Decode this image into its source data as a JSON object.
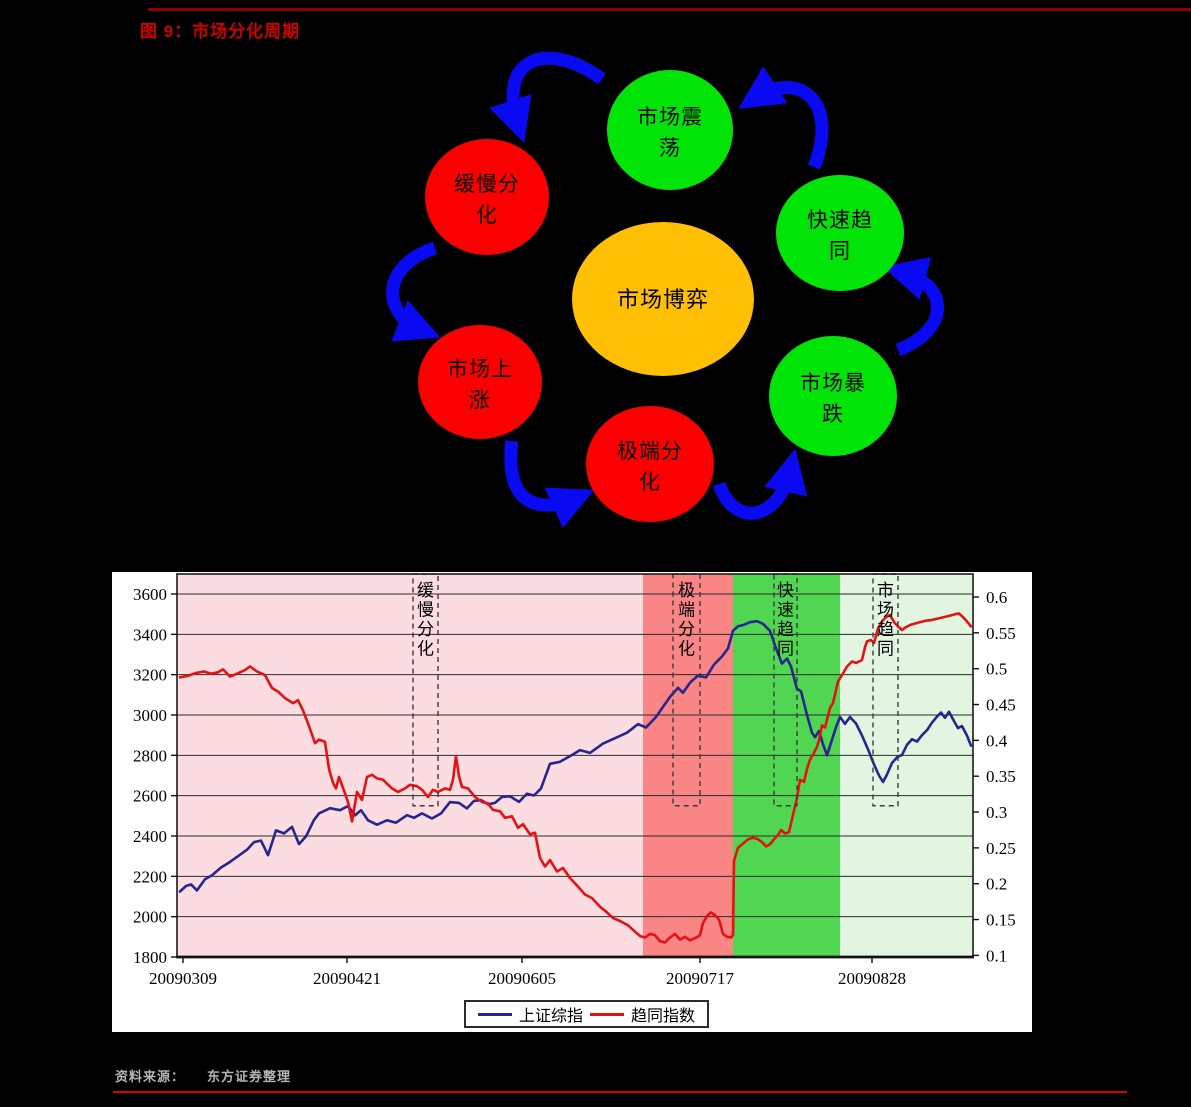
{
  "page": {
    "title": "图 9：市场分化周期",
    "source_label": "资料来源：",
    "source_value": "东方证券整理",
    "colors": {
      "background": "#000000",
      "title_red": "#CE0000",
      "top_rule": "#8E0000",
      "bottom_rule": "#D80000",
      "source_text": "#B5B5B5"
    }
  },
  "diagram": {
    "arrow_color": "#0A0AF2",
    "center": {
      "label": "市场博弈",
      "color": "#FFC004"
    },
    "nodes": {
      "oscillation": {
        "line1": "市场震",
        "line2": "荡",
        "color": "#00E408"
      },
      "slow_divergence": {
        "line1": "缓慢分",
        "line2": "化",
        "color": "#FA0000"
      },
      "fast_convergence": {
        "line1": "快速趋",
        "line2": "同",
        "color": "#00E408"
      },
      "market_rise": {
        "line1": "市场上",
        "line2": "涨",
        "color": "#FA0000"
      },
      "market_crash": {
        "line1": "市场暴",
        "line2": "跌",
        "color": "#00E408"
      },
      "extreme_divergence": {
        "line1": "极端分",
        "line2": "化",
        "color": "#FA0000"
      }
    },
    "cycle_order": [
      "市场震荡",
      "缓慢分化",
      "市场上涨",
      "极端分化",
      "市场暴跌",
      "快速趋同"
    ]
  },
  "chart_data": {
    "type": "line",
    "title": "",
    "xlabel": "",
    "ylabel_left": "",
    "ylabel_right": "",
    "grid": true,
    "legend_position": "bottom",
    "left_axis": {
      "min": 1800,
      "max": 3600,
      "ticks": [
        1800,
        2000,
        2200,
        2400,
        2600,
        2800,
        3000,
        3200,
        3400,
        3600
      ]
    },
    "right_axis": {
      "min": 0.1,
      "max": 0.6,
      "ticks": [
        0.1,
        0.15,
        0.2,
        0.25,
        0.3,
        0.35,
        0.4,
        0.45,
        0.5,
        0.55,
        0.6
      ]
    },
    "x_range": [
      0,
      796
    ],
    "x_ticks": [
      {
        "label": "20090309",
        "x": 6
      },
      {
        "label": "20090421",
        "x": 170
      },
      {
        "label": "20090605",
        "x": 345
      },
      {
        "label": "20090717",
        "x": 523
      },
      {
        "label": "20090828",
        "x": 695
      }
    ],
    "regions": [
      {
        "color": "#FBDCE1",
        "x1": 0,
        "x2": 466
      },
      {
        "color": "#F98585",
        "x1": 466,
        "x2": 556
      },
      {
        "color": "#50D650",
        "x1": 556,
        "x2": 663
      },
      {
        "color": "#E1F5E1",
        "x1": 663,
        "x2": 796
      }
    ],
    "annotations": {
      "bottom_value": 2550,
      "boxes": [
        {
          "label": "缓慢分化",
          "x1": 236,
          "x2": 261
        },
        {
          "label": "极端分化",
          "x1": 496,
          "x2": 523
        },
        {
          "label": "快速趋同",
          "x1": 597,
          "x2": 620
        },
        {
          "label": "市场趋同",
          "x1": 696,
          "x2": 721
        }
      ]
    },
    "series": [
      {
        "name": "上证综指",
        "axis": "left",
        "color": "#26268E",
        "points": [
          [
            3,
            2125
          ],
          [
            9,
            2152
          ],
          [
            14,
            2160
          ],
          [
            20,
            2130
          ],
          [
            28,
            2186
          ],
          [
            35,
            2205
          ],
          [
            44,
            2244
          ],
          [
            52,
            2268
          ],
          [
            61,
            2300
          ],
          [
            70,
            2332
          ],
          [
            77,
            2370
          ],
          [
            84,
            2377
          ],
          [
            91,
            2305
          ],
          [
            99,
            2428
          ],
          [
            107,
            2413
          ],
          [
            115,
            2445
          ],
          [
            122,
            2360
          ],
          [
            129,
            2398
          ],
          [
            137,
            2480
          ],
          [
            142,
            2512
          ],
          [
            153,
            2538
          ],
          [
            163,
            2528
          ],
          [
            171,
            2549
          ],
          [
            178,
            2502
          ],
          [
            184,
            2528
          ],
          [
            191,
            2478
          ],
          [
            200,
            2456
          ],
          [
            210,
            2478
          ],
          [
            219,
            2466
          ],
          [
            230,
            2503
          ],
          [
            237,
            2490
          ],
          [
            245,
            2512
          ],
          [
            255,
            2487
          ],
          [
            264,
            2512
          ],
          [
            273,
            2568
          ],
          [
            282,
            2564
          ],
          [
            290,
            2537
          ],
          [
            297,
            2574
          ],
          [
            304,
            2578
          ],
          [
            311,
            2557
          ],
          [
            318,
            2564
          ],
          [
            325,
            2594
          ],
          [
            333,
            2597
          ],
          [
            342,
            2569
          ],
          [
            350,
            2610
          ],
          [
            357,
            2601
          ],
          [
            364,
            2636
          ],
          [
            373,
            2758
          ],
          [
            383,
            2768
          ],
          [
            393,
            2796
          ],
          [
            403,
            2826
          ],
          [
            413,
            2812
          ],
          [
            426,
            2858
          ],
          [
            438,
            2885
          ],
          [
            450,
            2912
          ],
          [
            461,
            2955
          ],
          [
            469,
            2938
          ],
          [
            479,
            2990
          ],
          [
            486,
            3040
          ],
          [
            493,
            3090
          ],
          [
            501,
            3135
          ],
          [
            506,
            3110
          ],
          [
            513,
            3160
          ],
          [
            521,
            3196
          ],
          [
            529,
            3186
          ],
          [
            537,
            3250
          ],
          [
            545,
            3290
          ],
          [
            551,
            3330
          ],
          [
            556,
            3418
          ],
          [
            561,
            3440
          ],
          [
            567,
            3448
          ],
          [
            573,
            3460
          ],
          [
            580,
            3465
          ],
          [
            586,
            3452
          ],
          [
            593,
            3417
          ],
          [
            599,
            3330
          ],
          [
            605,
            3255
          ],
          [
            610,
            3280
          ],
          [
            614,
            3240
          ],
          [
            620,
            3130
          ],
          [
            624,
            3118
          ],
          [
            630,
            3000
          ],
          [
            635,
            2912
          ],
          [
            638,
            2890
          ],
          [
            642,
            2920
          ],
          [
            646,
            2855
          ],
          [
            650,
            2800
          ],
          [
            654,
            2862
          ],
          [
            659,
            2940
          ],
          [
            663,
            2990
          ],
          [
            668,
            2956
          ],
          [
            673,
            2990
          ],
          [
            679,
            2958
          ],
          [
            685,
            2898
          ],
          [
            691,
            2830
          ],
          [
            697,
            2755
          ],
          [
            702,
            2700
          ],
          [
            706,
            2668
          ],
          [
            710,
            2705
          ],
          [
            715,
            2762
          ],
          [
            720,
            2790
          ],
          [
            725,
            2802
          ],
          [
            730,
            2852
          ],
          [
            735,
            2880
          ],
          [
            740,
            2868
          ],
          [
            745,
            2900
          ],
          [
            750,
            2925
          ],
          [
            755,
            2962
          ],
          [
            760,
            2992
          ],
          [
            764,
            3012
          ],
          [
            768,
            2986
          ],
          [
            772,
            3016
          ],
          [
            777,
            2970
          ],
          [
            781,
            2935
          ],
          [
            785,
            2945
          ],
          [
            790,
            2898
          ],
          [
            794,
            2848
          ]
        ]
      },
      {
        "name": "趋同指数",
        "axis": "right",
        "color": "#E41212",
        "points": [
          [
            3,
            0.488
          ],
          [
            11,
            0.49
          ],
          [
            19,
            0.494
          ],
          [
            27,
            0.496
          ],
          [
            34,
            0.493
          ],
          [
            41,
            0.495
          ],
          [
            46,
            0.499
          ],
          [
            53,
            0.489
          ],
          [
            60,
            0.493
          ],
          [
            68,
            0.498
          ],
          [
            73,
            0.503
          ],
          [
            80,
            0.496
          ],
          [
            88,
            0.491
          ],
          [
            95,
            0.473
          ],
          [
            101,
            0.468
          ],
          [
            108,
            0.459
          ],
          [
            116,
            0.452
          ],
          [
            121,
            0.456
          ],
          [
            126,
            0.442
          ],
          [
            132,
            0.42
          ],
          [
            138,
            0.396
          ],
          [
            142,
            0.401
          ],
          [
            148,
            0.398
          ],
          [
            152,
            0.36
          ],
          [
            156,
            0.341
          ],
          [
            159,
            0.333
          ],
          [
            162,
            0.349
          ],
          [
            168,
            0.326
          ],
          [
            171,
            0.314
          ],
          [
            175,
            0.287
          ],
          [
            180,
            0.328
          ],
          [
            185,
            0.317
          ],
          [
            190,
            0.349
          ],
          [
            195,
            0.352
          ],
          [
            200,
            0.347
          ],
          [
            206,
            0.345
          ],
          [
            215,
            0.333
          ],
          [
            221,
            0.328
          ],
          [
            228,
            0.333
          ],
          [
            233,
            0.338
          ],
          [
            240,
            0.336
          ],
          [
            245,
            0.331
          ],
          [
            251,
            0.321
          ],
          [
            256,
            0.331
          ],
          [
            261,
            0.328
          ],
          [
            268,
            0.333
          ],
          [
            273,
            0.331
          ],
          [
            276,
            0.345
          ],
          [
            279,
            0.378
          ],
          [
            282,
            0.35
          ],
          [
            285,
            0.335
          ],
          [
            291,
            0.333
          ],
          [
            298,
            0.321
          ],
          [
            305,
            0.314
          ],
          [
            311,
            0.312
          ],
          [
            316,
            0.303
          ],
          [
            323,
            0.301
          ],
          [
            328,
            0.292
          ],
          [
            335,
            0.294
          ],
          [
            341,
            0.278
          ],
          [
            346,
            0.283
          ],
          [
            353,
            0.269
          ],
          [
            358,
            0.271
          ],
          [
            363,
            0.236
          ],
          [
            368,
            0.224
          ],
          [
            373,
            0.233
          ],
          [
            380,
            0.217
          ],
          [
            386,
            0.222
          ],
          [
            393,
            0.208
          ],
          [
            401,
            0.196
          ],
          [
            408,
            0.185
          ],
          [
            415,
            0.18
          ],
          [
            423,
            0.168
          ],
          [
            430,
            0.16
          ],
          [
            436,
            0.152
          ],
          [
            443,
            0.148
          ],
          [
            451,
            0.142
          ],
          [
            458,
            0.133
          ],
          [
            463,
            0.127
          ],
          [
            468,
            0.125
          ],
          [
            473,
            0.13
          ],
          [
            478,
            0.128
          ],
          [
            483,
            0.12
          ],
          [
            488,
            0.118
          ],
          [
            493,
            0.125
          ],
          [
            498,
            0.13
          ],
          [
            503,
            0.122
          ],
          [
            508,
            0.126
          ],
          [
            513,
            0.121
          ],
          [
            518,
            0.124
          ],
          [
            523,
            0.128
          ],
          [
            526,
            0.145
          ],
          [
            530,
            0.155
          ],
          [
            534,
            0.16
          ],
          [
            538,
            0.156
          ],
          [
            542,
            0.15
          ],
          [
            546,
            0.13
          ],
          [
            550,
            0.126
          ],
          [
            554,
            0.125
          ],
          [
            556,
            0.128
          ],
          [
            557,
            0.232
          ],
          [
            561,
            0.25
          ],
          [
            566,
            0.256
          ],
          [
            571,
            0.262
          ],
          [
            576,
            0.264
          ],
          [
            581,
            0.262
          ],
          [
            585,
            0.258
          ],
          [
            589,
            0.252
          ],
          [
            593,
            0.255
          ],
          [
            597,
            0.262
          ],
          [
            601,
            0.268
          ],
          [
            604,
            0.275
          ],
          [
            608,
            0.27
          ],
          [
            612,
            0.272
          ],
          [
            616,
            0.296
          ],
          [
            620,
            0.32
          ],
          [
            623,
            0.345
          ],
          [
            627,
            0.342
          ],
          [
            630,
            0.36
          ],
          [
            633,
            0.373
          ],
          [
            636,
            0.38
          ],
          [
            640,
            0.391
          ],
          [
            642,
            0.4
          ],
          [
            645,
            0.421
          ],
          [
            648,
            0.418
          ],
          [
            653,
            0.445
          ],
          [
            656,
            0.452
          ],
          [
            659,
            0.47
          ],
          [
            661,
            0.482
          ],
          [
            665,
            0.491
          ],
          [
            670,
            0.503
          ],
          [
            675,
            0.51
          ],
          [
            679,
            0.508
          ],
          [
            685,
            0.512
          ],
          [
            688,
            0.53
          ],
          [
            690,
            0.538
          ],
          [
            694,
            0.54
          ],
          [
            697,
            0.536
          ],
          [
            701,
            0.556
          ],
          [
            705,
            0.566
          ],
          [
            709,
            0.572
          ],
          [
            713,
            0.575
          ],
          [
            717,
            0.565
          ],
          [
            721,
            0.559
          ],
          [
            725,
            0.554
          ],
          [
            729,
            0.558
          ],
          [
            733,
            0.561
          ],
          [
            738,
            0.563
          ],
          [
            743,
            0.565
          ],
          [
            749,
            0.567
          ],
          [
            755,
            0.568
          ],
          [
            761,
            0.57
          ],
          [
            767,
            0.572
          ],
          [
            773,
            0.574
          ],
          [
            778,
            0.576
          ],
          [
            782,
            0.577
          ],
          [
            786,
            0.572
          ],
          [
            790,
            0.566
          ],
          [
            794,
            0.559
          ]
        ]
      }
    ]
  }
}
